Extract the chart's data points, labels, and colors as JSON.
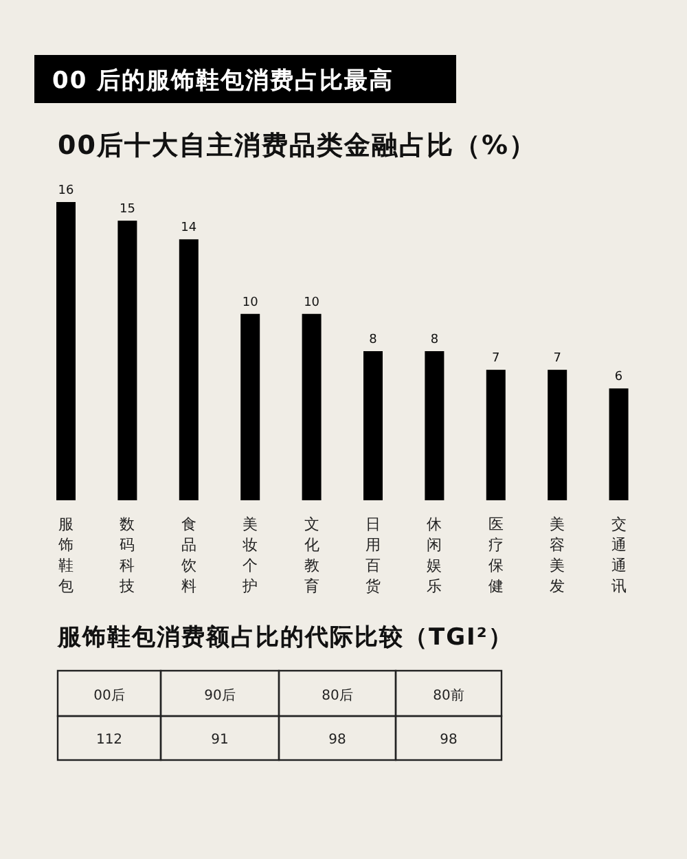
{
  "chart_data": [
    {
      "type": "bar",
      "title": "00 后的服饰鞋包消费占比最高",
      "subtitle": "00后十大自主消费品类金融占比（%）",
      "categories": [
        "服饰鞋包",
        "数码科技",
        "食品饮料",
        "美妆个护",
        "文化教育",
        "日用百货",
        "休闲娱乐",
        "医疗保健",
        "美容美发",
        "交通通讯"
      ],
      "values": [
        16,
        15,
        14,
        10,
        10,
        8,
        8,
        7,
        7,
        6
      ],
      "color": "#000000",
      "data_labels": true
    },
    {
      "type": "other",
      "title": "服饰鞋包消费额占比的代际比较（TGI²）",
      "categories": [
        "00后",
        "90后",
        "80后",
        "80前"
      ],
      "values": [
        112,
        91,
        98,
        98
      ],
      "data_labels": true
    }
  ]
}
